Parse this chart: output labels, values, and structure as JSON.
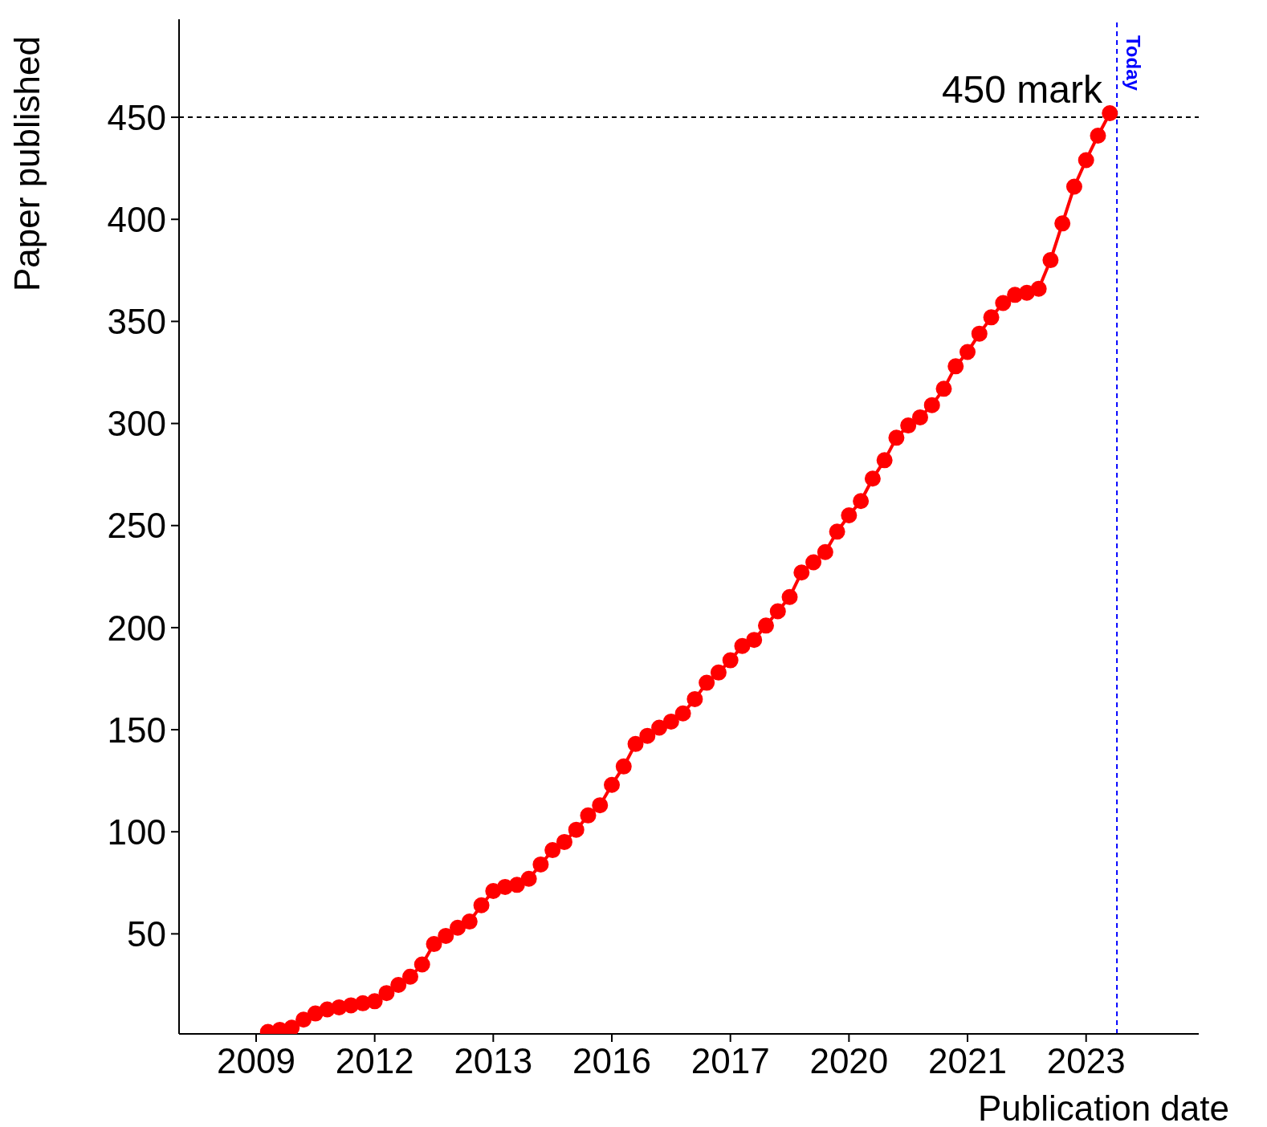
{
  "chart_data": {
    "type": "line",
    "xlabel": "Publication date",
    "ylabel": "Paper published",
    "categories": [
      null,
      null,
      null,
      null,
      null,
      null,
      "2009",
      null,
      null,
      null,
      null,
      null,
      null,
      null,
      null,
      null,
      "2012",
      null,
      null,
      null,
      null,
      null,
      null,
      null,
      null,
      null,
      "2013",
      null,
      null,
      null,
      null,
      null,
      null,
      null,
      null,
      null,
      "2016",
      null,
      null,
      null,
      null,
      null,
      null,
      null,
      null,
      null,
      "2017",
      null,
      null,
      null,
      null,
      null,
      null,
      null,
      null,
      null,
      "2020",
      null,
      null,
      null,
      null,
      null,
      null,
      null,
      null,
      null,
      "2021",
      null,
      null,
      null,
      null,
      null,
      null,
      null,
      null,
      null,
      "2023",
      null,
      null,
      null,
      null,
      null,
      null,
      null,
      null,
      null
    ],
    "ylim": [
      1,
      498
    ],
    "yticks": [
      50,
      100,
      150,
      200,
      250,
      300,
      350,
      400,
      450
    ],
    "marker": "circle",
    "line_style": "solid",
    "series": [
      {
        "color": "#ff0000",
        "values": [
          null,
          null,
          null,
          null,
          null,
          null,
          null,
          2,
          3,
          4,
          8,
          11,
          13,
          14,
          15,
          16,
          17,
          21,
          25,
          29,
          35,
          45,
          49,
          53,
          56,
          64,
          71,
          73,
          74,
          77,
          84,
          91,
          95,
          101,
          108,
          113,
          123,
          132,
          143,
          147,
          151,
          154,
          158,
          165,
          173,
          178,
          184,
          191,
          194,
          201,
          208,
          215,
          227,
          232,
          237,
          247,
          255,
          262,
          273,
          282,
          293,
          299,
          303,
          309,
          317,
          328,
          335,
          344,
          352,
          359,
          363,
          364,
          366,
          380,
          398,
          416,
          429,
          441,
          452,
          null,
          null,
          null,
          null,
          null,
          null,
          null
        ]
      }
    ],
    "annotations": [
      "Today"
    ],
    "ref_lines": [
      {
        "axis": "y",
        "value": 450,
        "label": "450 mark",
        "color": "#000000",
        "line_style": "dashed"
      }
    ]
  }
}
